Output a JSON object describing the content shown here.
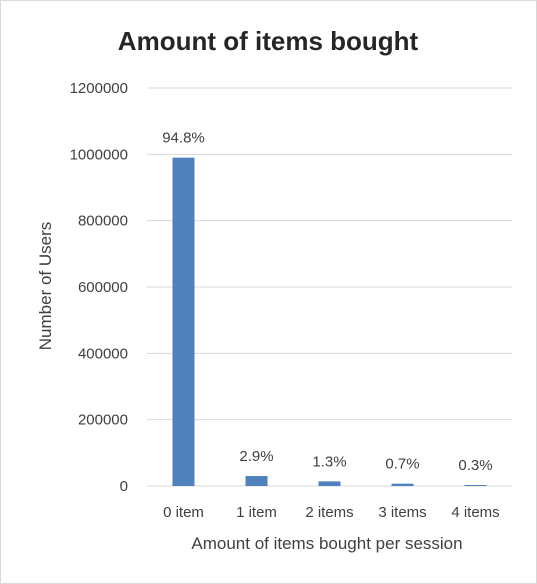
{
  "chart_data": {
    "type": "bar",
    "title": "Amount of items bought",
    "xlabel": "Amount of items bought per session",
    "ylabel": "Number of Users",
    "categories": [
      "0 item",
      "1 item",
      "2 items",
      "3 items",
      "4 items"
    ],
    "values": [
      990000,
      30000,
      14000,
      7000,
      3000
    ],
    "data_labels": [
      "94.8%",
      "2.9%",
      "1.3%",
      "0.7%",
      "0.3%"
    ],
    "ylim": [
      0,
      1200000
    ],
    "yticks": [
      "0",
      "200000",
      "400000",
      "600000",
      "800000",
      "1000000",
      "1200000"
    ],
    "grid": true,
    "legend": "none",
    "bar_color": "#4f81bd",
    "grid_color": "#d9d9d9"
  }
}
